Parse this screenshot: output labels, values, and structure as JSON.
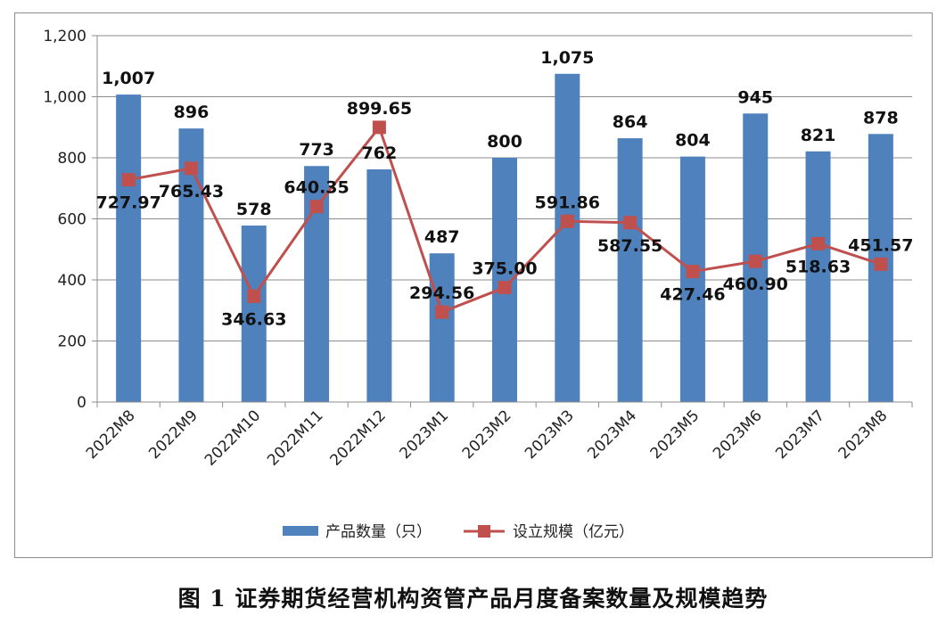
{
  "caption": "图 1    证券期货经营机构资管产品月度备案数量及规模趋势",
  "chart_data": {
    "type": "bar",
    "categories": [
      "2022M8",
      "2022M9",
      "2022M10",
      "2022M11",
      "2022M12",
      "2023M1",
      "2023M2",
      "2023M3",
      "2023M4",
      "2023M5",
      "2023M6",
      "2023M7",
      "2023M8"
    ],
    "ylim": [
      0,
      1200
    ],
    "yticks": [
      "0",
      "200",
      "400",
      "600",
      "800",
      "1,000",
      "1,200"
    ],
    "ytick_values": [
      0,
      200,
      400,
      600,
      800,
      1000,
      1200
    ],
    "grid": true,
    "legend_position": "bottom",
    "series": [
      {
        "name": "产品数量（只）",
        "type": "bar",
        "color": "#4f81bd",
        "values": [
          1007,
          896,
          578,
          773,
          762,
          487,
          800,
          1075,
          864,
          804,
          945,
          821,
          878
        ],
        "labels": [
          "1,007",
          "896",
          "578",
          "773",
          "762",
          "487",
          "800",
          "1,075",
          "864",
          "804",
          "945",
          "821",
          "878"
        ]
      },
      {
        "name": "设立规模（亿元）",
        "type": "line",
        "color": "#c0504d",
        "values": [
          727.97,
          765.43,
          346.63,
          640.35,
          899.65,
          294.56,
          375.0,
          591.86,
          587.55,
          427.46,
          460.9,
          518.63,
          451.57
        ],
        "labels": [
          "727.97",
          "765.43",
          "346.63",
          "640.35",
          "899.65",
          "294.56",
          "375.00",
          "591.86",
          "587.55",
          "427.46",
          "460.90",
          "518.63",
          "451.57"
        ]
      }
    ]
  }
}
